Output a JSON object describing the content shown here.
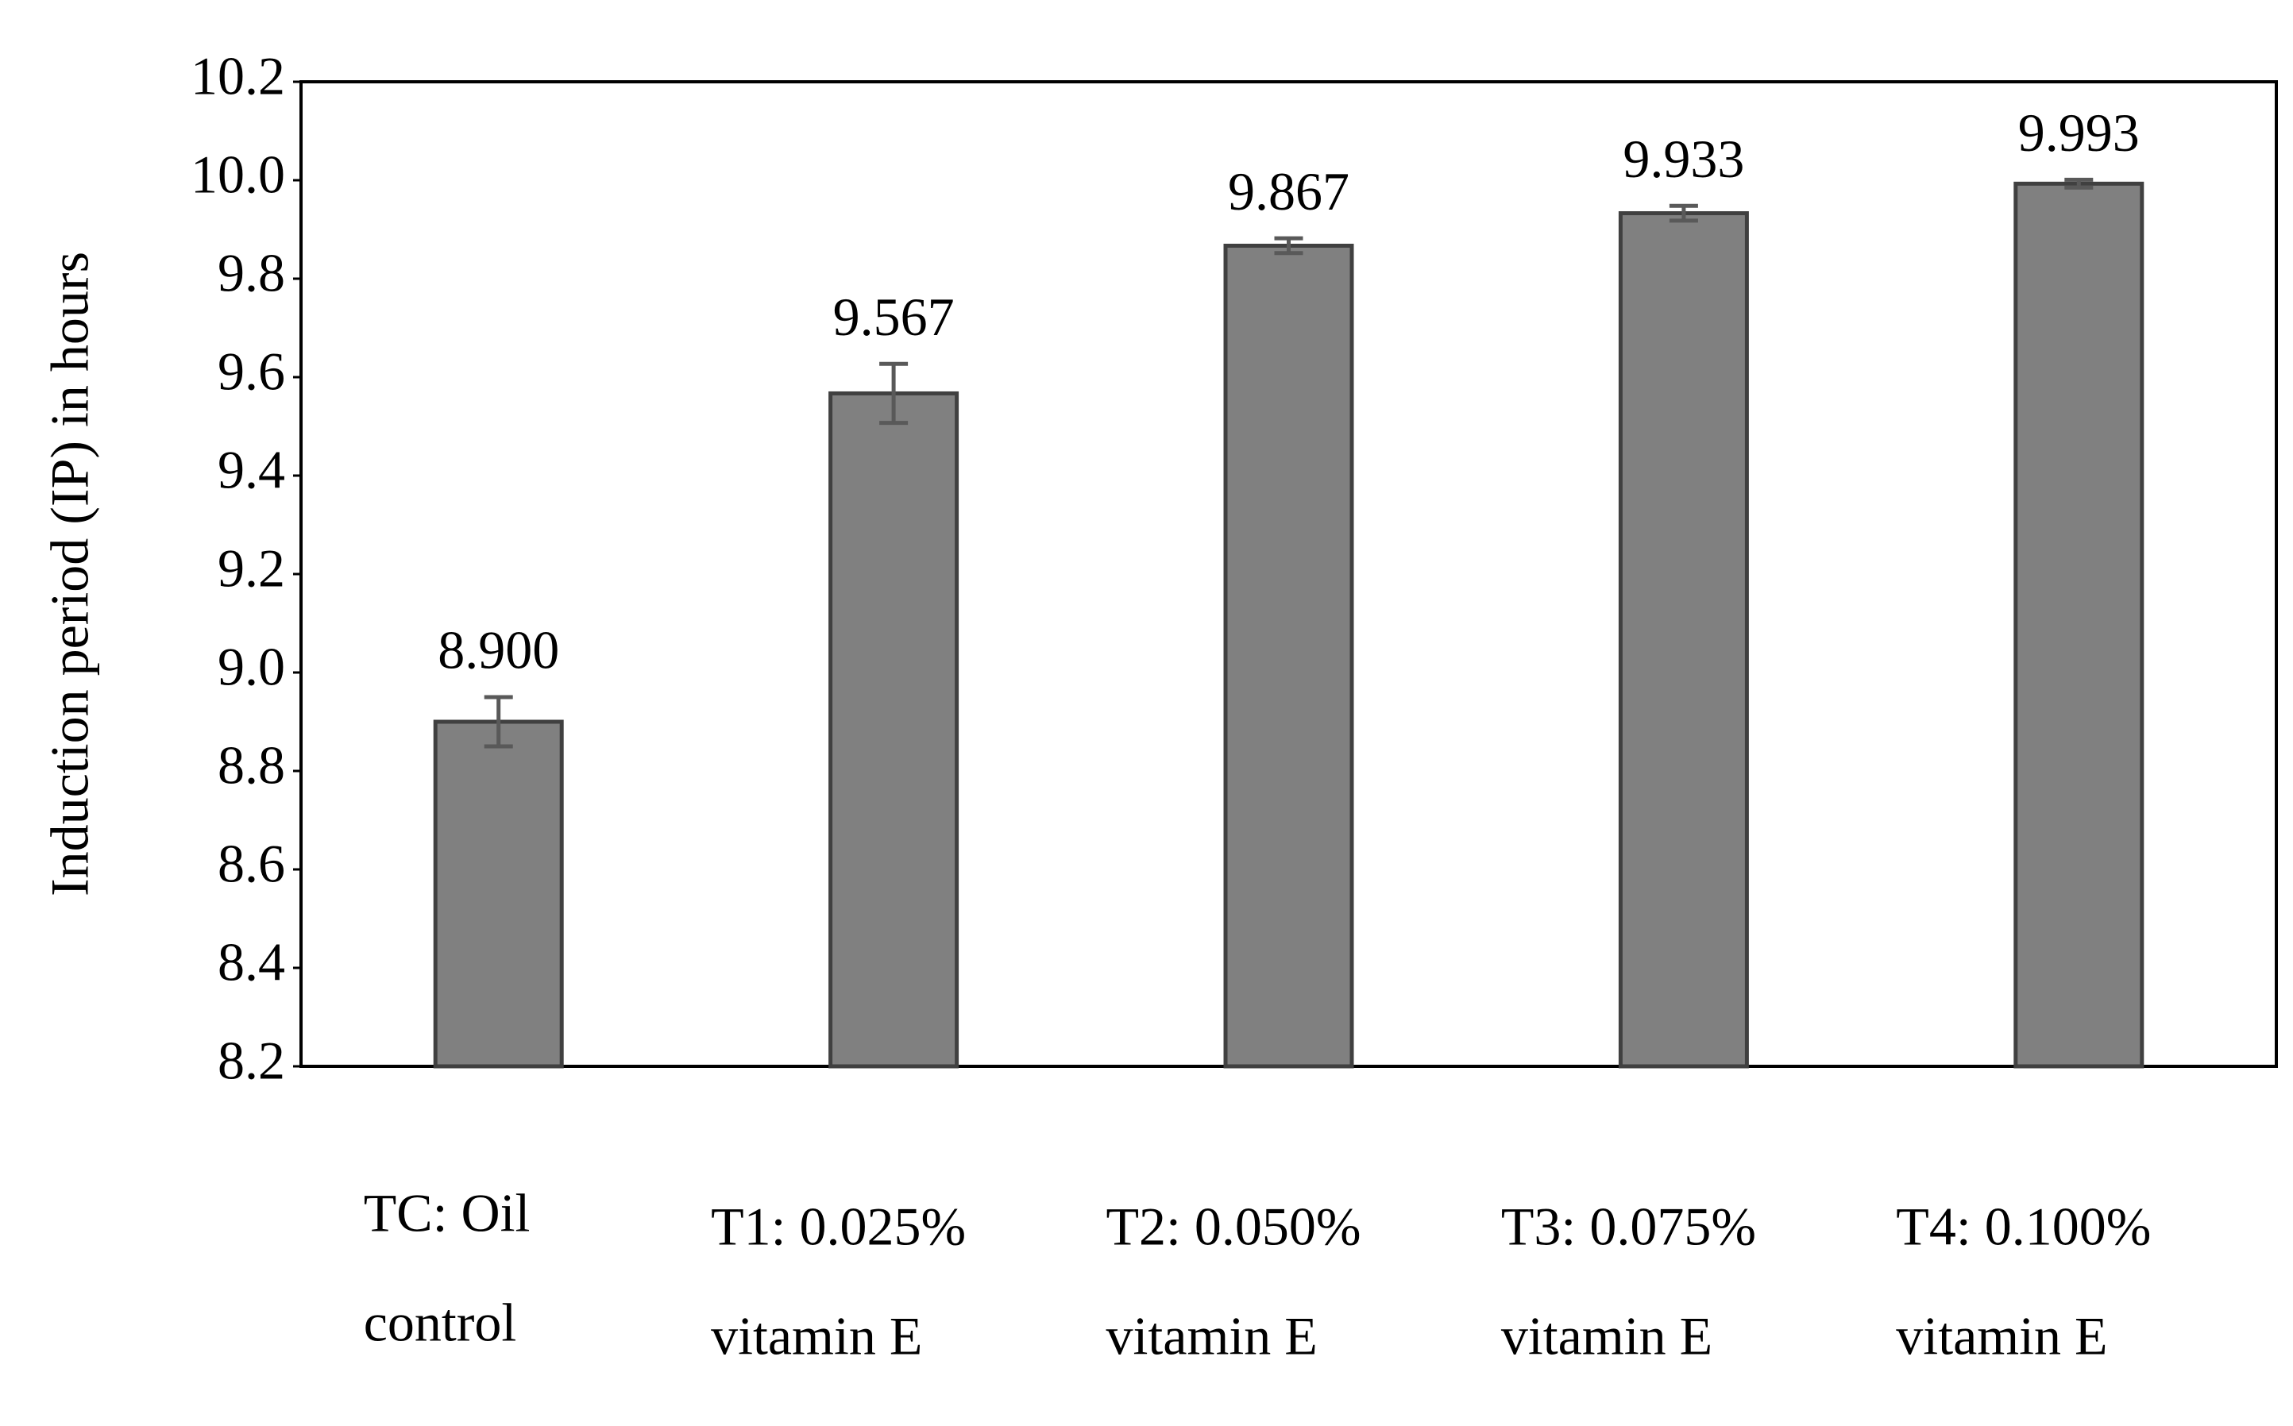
{
  "chart_data": {
    "type": "bar",
    "y_label": "Induction period (IP) in hours",
    "categories": [
      [
        "TC:     Oil",
        "control"
      ],
      [
        "T1:  0.025%",
        "vitamin E"
      ],
      [
        "T2:  0.050%",
        "vitamin E"
      ],
      [
        "T3:  0.075%",
        "vitamin E"
      ],
      [
        "T4:  0.100%",
        "vitamin E"
      ]
    ],
    "values": [
      8.9,
      9.567,
      9.867,
      9.933,
      9.993
    ],
    "value_labels": [
      "8.900",
      "9.567",
      "9.867",
      "9.933",
      "9.993"
    ],
    "errors": [
      0.05,
      0.06,
      0.015,
      0.015,
      0.008
    ],
    "color": "#808080",
    "ylim": [
      8.2,
      10.2
    ],
    "yticks": [
      {
        "value": 8.2,
        "label": "8.2"
      },
      8.4,
      8.6,
      8.8,
      {
        "value": 9,
        "label": "9.0"
      },
      9.2,
      9.4,
      9.6,
      9.8,
      {
        "value": 10,
        "label": "10.0"
      },
      10.2
    ]
  }
}
